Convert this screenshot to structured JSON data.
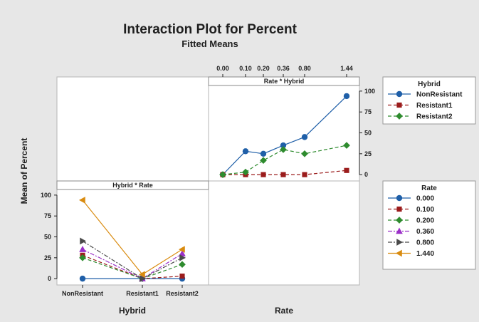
{
  "chart_data": {
    "type": "line",
    "title": "Interaction Plot for Percent",
    "subtitle": "Fitted Means",
    "ylabel": "Mean of Percent",
    "yticks": [
      0,
      25,
      50,
      75,
      100
    ],
    "ylim": [
      -5,
      105
    ],
    "colors": [
      "#1f5fa8",
      "#9b1c1c",
      "#2e8b2e",
      "#9b30c8",
      "#4a4a4a",
      "#d98b0f"
    ],
    "panels": [
      {
        "strip": "Rate * Hybrid",
        "xlabel": "Rate",
        "x": [
          "0.00",
          "0.10",
          "0.20",
          "0.36",
          "0.80",
          "1.44"
        ],
        "legend_title": "Hybrid",
        "series": [
          {
            "name": "NonResistant",
            "marker": "circle",
            "dash": "solid",
            "values": [
              0,
              28,
              25,
              35,
              45,
              94
            ]
          },
          {
            "name": "Resistant1",
            "marker": "square",
            "dash": "dashed",
            "values": [
              0,
              0,
              0,
              0,
              0,
              5
            ]
          },
          {
            "name": "Resistant2",
            "marker": "diamond",
            "dash": "dashed",
            "values": [
              0,
              3,
              17,
              30,
              25,
              35
            ]
          }
        ]
      },
      {
        "strip": "Hybrid * Rate",
        "xlabel": "Hybrid",
        "x": [
          "NonResistant",
          "Resistant1",
          "Resistant2"
        ],
        "legend_title": "Rate",
        "series": [
          {
            "name": "0.000",
            "marker": "circle",
            "dash": "solid",
            "values": [
              0,
              0,
              0
            ]
          },
          {
            "name": "0.100",
            "marker": "square",
            "dash": "dashed",
            "values": [
              28,
              0,
              3
            ]
          },
          {
            "name": "0.200",
            "marker": "diamond",
            "dash": "dashed",
            "values": [
              25,
              0,
              17
            ]
          },
          {
            "name": "0.360",
            "marker": "triangle-up",
            "dash": "dashdot",
            "values": [
              35,
              0,
              30
            ]
          },
          {
            "name": "0.800",
            "marker": "triangle-right",
            "dash": "dashdot",
            "values": [
              45,
              0,
              25
            ]
          },
          {
            "name": "1.440",
            "marker": "triangle-left",
            "dash": "solid",
            "values": [
              94,
              5,
              35
            ]
          }
        ]
      }
    ]
  }
}
